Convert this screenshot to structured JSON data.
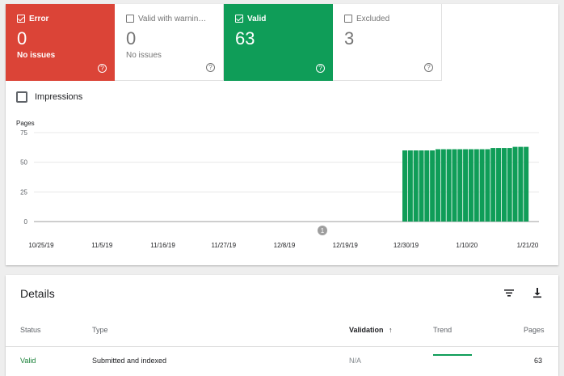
{
  "tiles": [
    {
      "label": "Error",
      "value": "0",
      "sub": "No issues",
      "checked": true
    },
    {
      "label": "Valid with warnin…",
      "value": "0",
      "sub": "No issues",
      "checked": false
    },
    {
      "label": "Valid",
      "value": "63",
      "sub": "",
      "checked": true
    },
    {
      "label": "Excluded",
      "value": "3",
      "sub": "",
      "checked": false
    }
  ],
  "help_glyph": "?",
  "impressions_label": "Impressions",
  "chart_data": {
    "type": "bar",
    "ylabel": "Pages",
    "ylim": [
      0,
      75
    ],
    "yticks": [
      "0",
      "25",
      "50",
      "75"
    ],
    "xtick_labels": [
      "10/25/19",
      "11/5/19",
      "11/16/19",
      "11/27/19",
      "12/8/19",
      "12/19/19",
      "12/30/19",
      "1/10/20",
      "1/21/20"
    ],
    "annotation": "1",
    "bar_color": "#0f9d58",
    "series": [
      {
        "values": [
          60,
          60,
          60,
          60,
          60,
          60,
          61,
          61,
          61,
          61,
          61,
          61,
          61,
          61,
          61,
          61,
          62,
          62,
          62,
          62,
          63,
          63,
          63
        ]
      }
    ]
  },
  "details": {
    "title": "Details",
    "filter_icon": "filter-icon",
    "download_icon": "download-icon",
    "columns": {
      "status": "Status",
      "type": "Type",
      "validation": "Validation",
      "sort_arrow": "↑",
      "trend": "Trend",
      "pages": "Pages"
    },
    "rows": [
      {
        "status": "Valid",
        "type": "Submitted and indexed",
        "validation": "N/A",
        "pages": "63"
      }
    ]
  }
}
